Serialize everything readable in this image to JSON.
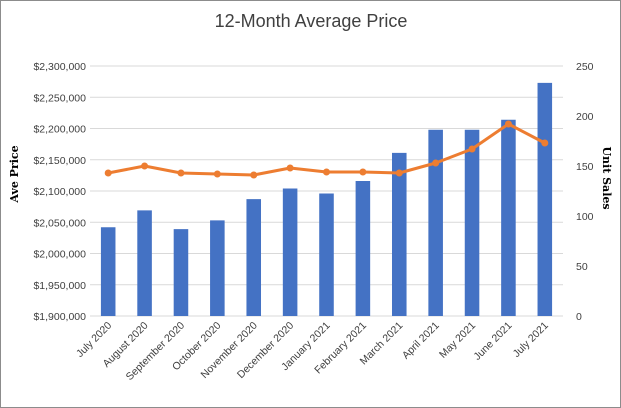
{
  "chart_data": {
    "type": "bar",
    "title": "12-Month Average Price",
    "categories": [
      "July 2020",
      "August 2020",
      "September 2020",
      "October 2020",
      "November 2020",
      "December 2020",
      "January 2021",
      "February 2021",
      "March 2021",
      "April 2021",
      "May 2021",
      "June 2021",
      "July 2021"
    ],
    "ylabel": "Ave Price",
    "y2label": "Unit Sales",
    "ylim": [
      1900000,
      2300000
    ],
    "y2lim": [
      0,
      250
    ],
    "yticks": [
      "$1,900,000",
      "$1,950,000",
      "$2,000,000",
      "$2,050,000",
      "$2,100,000",
      "$2,150,000",
      "$2,200,000",
      "$2,250,000",
      "$2,300,000"
    ],
    "y2ticks": [
      "0",
      "50",
      "100",
      "150",
      "200",
      "250"
    ],
    "grid": true,
    "legend": "none",
    "series": [
      {
        "type": "bar",
        "axis": "left",
        "color": "#4472c4",
        "values": [
          2042000,
          2069000,
          2039000,
          2053000,
          2087000,
          2104000,
          2096000,
          2116000,
          2161000,
          2198000,
          2198000,
          2214000,
          2273000
        ]
      },
      {
        "type": "line",
        "axis": "right",
        "color": "#ed7d31",
        "values": [
          143,
          150,
          143,
          142,
          141,
          148,
          144,
          144,
          143,
          153,
          167,
          192,
          173
        ]
      }
    ]
  }
}
